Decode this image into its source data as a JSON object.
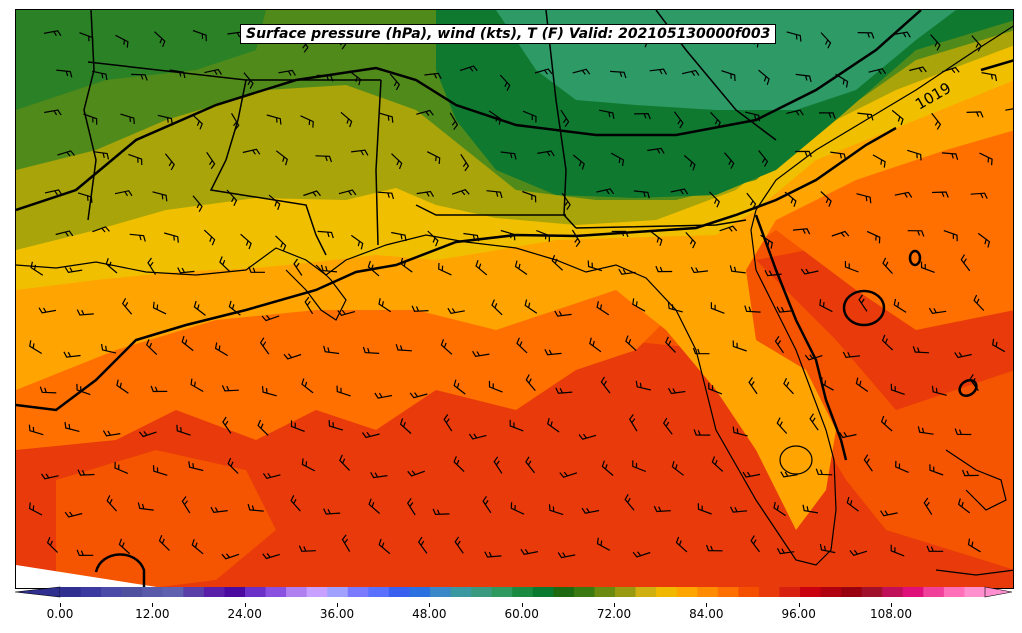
{
  "title": "Surface pressure (hPa), wind (kts), T (F) Valid: 202105130000f003",
  "isobar_label": "1019",
  "colorbar": {
    "ticks": [
      "0.00",
      "12.00",
      "24.00",
      "36.00",
      "48.00",
      "60.00",
      "72.00",
      "84.00",
      "96.00",
      "108.00"
    ],
    "colors": [
      "#2f2f8f",
      "#3b3b9f",
      "#4a4aa8",
      "#5050a0",
      "#5a5aaa",
      "#6060b0",
      "#5a3fa8",
      "#5a1fa8",
      "#4a0aa0",
      "#6a30c8",
      "#8a50e0",
      "#b080f0",
      "#c8a0ff",
      "#a0a0ff",
      "#7a7aff",
      "#5a70ff",
      "#3a60f0",
      "#2a70e0",
      "#3a88c8",
      "#3a98a0",
      "#3a9a80",
      "#2f9a60",
      "#1a8a40",
      "#0a7a30",
      "#1f6a10",
      "#3a7a10",
      "#6a8a10",
      "#9a9a10",
      "#d0b010",
      "#f0b800",
      "#ffa500",
      "#ff8c00",
      "#ff7000",
      "#f55000",
      "#e83a0a",
      "#d82010",
      "#c80010",
      "#b00010",
      "#980010",
      "#a0102a",
      "#c0105a",
      "#e0107a",
      "#f0409a",
      "#ff70b8",
      "#ff90d0"
    ],
    "left_extend_color": "#2f2f8f",
    "right_extend_color": "#ff90d0"
  },
  "colors": {
    "cool_green": "#2e9a66",
    "dark_green": "#0f7a2f",
    "olive_green": "#4f8a1a",
    "olive": "#a8a40a",
    "yellow": "#f0c000",
    "light_orange": "#ffa400",
    "orange": "#ff7a00",
    "dark_orange": "#f55400",
    "red_orange": "#e83a0a"
  }
}
